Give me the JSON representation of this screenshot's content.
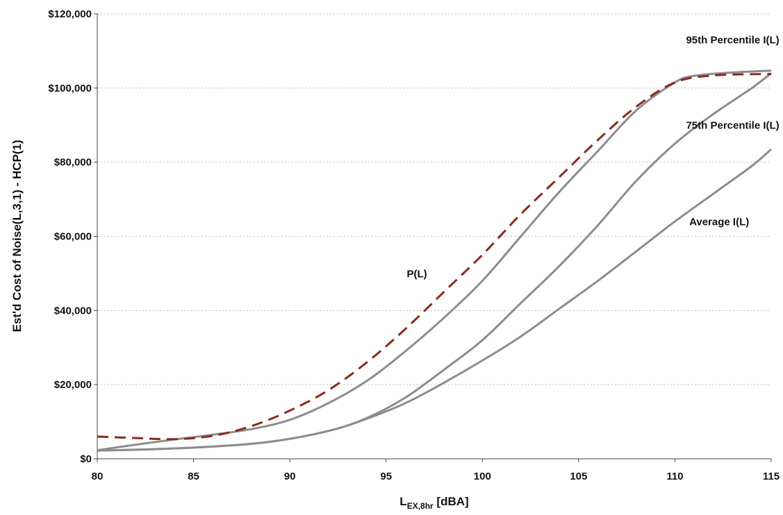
{
  "chart_data": {
    "type": "line",
    "xlabel": {
      "main": "L",
      "sub": "EX,8hr",
      "unit": " [dBA]"
    },
    "ylabel": "Est'd Cost of Noise(L,3,1) - HCP(1)",
    "xlim": [
      80,
      115
    ],
    "ylim": [
      0,
      120000
    ],
    "x_ticks": [
      "80",
      "85",
      "90",
      "95",
      "100",
      "105",
      "110",
      "115"
    ],
    "y_ticks": [
      "$0",
      "$20,000",
      "$40,000",
      "$60,000",
      "$80,000",
      "$100,000",
      "$120,000"
    ],
    "grid": true,
    "series": [
      {
        "name": "P(L)",
        "color": "#8b2a1a",
        "style": "dashed",
        "points": [
          [
            80,
            6000
          ],
          [
            82,
            5600
          ],
          [
            84,
            5300
          ],
          [
            86,
            6200
          ],
          [
            88,
            8800
          ],
          [
            90,
            13000
          ],
          [
            92,
            18500
          ],
          [
            94,
            26000
          ],
          [
            96,
            35000
          ],
          [
            98,
            45000
          ],
          [
            100,
            55000
          ],
          [
            102,
            66000
          ],
          [
            104,
            76000
          ],
          [
            106,
            86000
          ],
          [
            108,
            95000
          ],
          [
            110,
            101500
          ],
          [
            112,
            103400
          ],
          [
            115,
            103800
          ]
        ]
      },
      {
        "name": "95th Percentile I(L)",
        "color": "#8c8c8c",
        "style": "solid",
        "points": [
          [
            80,
            2300
          ],
          [
            82,
            3800
          ],
          [
            84,
            5200
          ],
          [
            86,
            6500
          ],
          [
            88,
            8000
          ],
          [
            90,
            10500
          ],
          [
            92,
            15000
          ],
          [
            94,
            21000
          ],
          [
            96,
            29000
          ],
          [
            98,
            38000
          ],
          [
            100,
            48000
          ],
          [
            102,
            60000
          ],
          [
            104,
            72000
          ],
          [
            106,
            83000
          ],
          [
            108,
            94000
          ],
          [
            110,
            101500
          ],
          [
            111,
            103300
          ],
          [
            113,
            104200
          ],
          [
            115,
            104700
          ]
        ]
      },
      {
        "name": "75th Percentile I(L)",
        "color": "#8c8c8c",
        "style": "solid",
        "points": [
          [
            80,
            2200
          ],
          [
            83,
            2600
          ],
          [
            86,
            3300
          ],
          [
            89,
            4600
          ],
          [
            92,
            7500
          ],
          [
            94,
            11000
          ],
          [
            96,
            16500
          ],
          [
            98,
            24000
          ],
          [
            100,
            32000
          ],
          [
            102,
            42000
          ],
          [
            104,
            52000
          ],
          [
            106,
            63000
          ],
          [
            108,
            75000
          ],
          [
            110,
            85000
          ],
          [
            112,
            93000
          ],
          [
            114,
            100000
          ],
          [
            115,
            104000
          ]
        ]
      },
      {
        "name": "Average I(L)",
        "color": "#8c8c8c",
        "style": "solid",
        "points": [
          [
            80,
            2200
          ],
          [
            83,
            2600
          ],
          [
            86,
            3300
          ],
          [
            89,
            4600
          ],
          [
            92,
            7500
          ],
          [
            94,
            10800
          ],
          [
            96,
            15000
          ],
          [
            98,
            20500
          ],
          [
            100,
            26500
          ],
          [
            102,
            33000
          ],
          [
            104,
            40500
          ],
          [
            106,
            48000
          ],
          [
            108,
            56000
          ],
          [
            110,
            64000
          ],
          [
            112,
            71500
          ],
          [
            114,
            79000
          ],
          [
            115,
            83500
          ]
        ]
      }
    ],
    "annotations": [
      {
        "text": "95th Percentile I(L)",
        "x": 113,
        "y": 112000
      },
      {
        "text": "75th Percentile I(L)",
        "x": 113,
        "y": 89000
      },
      {
        "text": "Average I(L)",
        "x": 112.3,
        "y": 63000
      },
      {
        "text": "P(L)",
        "x": 96.6,
        "y": 49000
      }
    ]
  }
}
